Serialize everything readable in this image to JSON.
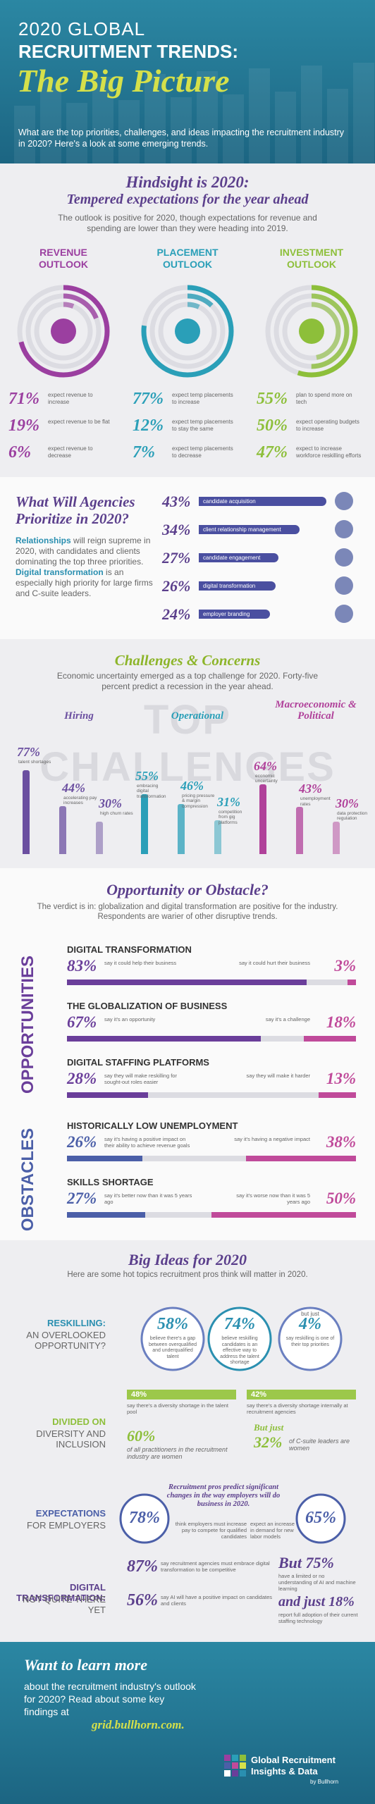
{
  "header": {
    "line1": "2020 GLOBAL",
    "line2": "RECRUITMENT TRENDS:",
    "line3": "The Big Picture",
    "intro": "What are the top priorities, challenges, and ideas impacting the recruitment industry in 2020? Here's a look at some emerging trends."
  },
  "hindsight": {
    "title": "Hindsight is 2020:",
    "subtitle": "Tempered expectations for the year ahead",
    "text": "The outlook is positive for 2020, though expectations for revenue and spending are lower than they were heading into 2019.",
    "columns": [
      {
        "heading": [
          "REVENUE",
          "OUTLOOK"
        ],
        "color": "#9b3fa0",
        "items": [
          {
            "value": "71%",
            "label": "expect revenue to increase"
          },
          {
            "value": "19%",
            "label": "expect revenue to be flat"
          },
          {
            "value": "6%",
            "label": "expect revenue to decrease"
          }
        ]
      },
      {
        "heading": [
          "PLACEMENT",
          "OUTLOOK"
        ],
        "color": "#2a9fb8",
        "items": [
          {
            "value": "77%",
            "label": "expect temp placements to increase"
          },
          {
            "value": "12%",
            "label": "expect temp placements to stay the same"
          },
          {
            "value": "7%",
            "label": "expect temp placements to decrease"
          }
        ]
      },
      {
        "heading": [
          "INVESTMENT",
          "OUTLOOK"
        ],
        "color": "#8dbf3a",
        "items": [
          {
            "value": "55%",
            "label": "plan to spend more on tech"
          },
          {
            "value": "50%",
            "label": "expect operating budgets to increase"
          },
          {
            "value": "47%",
            "label": "expect to increase workforce reskilling efforts"
          }
        ]
      }
    ]
  },
  "priorities": {
    "title": "What Will Agencies Prioritize in 2020?",
    "text": [
      {
        "bold": "Relationships"
      },
      {
        "plain": " will reign supreme in 2020, with candidates and clients dominating the top three priorities. "
      },
      {
        "bold": "Digital transformation"
      },
      {
        "plain": " is an especially high priority for large firms and C-suite leaders."
      }
    ],
    "items": [
      {
        "value": "43%",
        "label": "candidate acquisition"
      },
      {
        "value": "34%",
        "label": "client relationship management"
      },
      {
        "value": "27%",
        "label": "candidate engagement"
      },
      {
        "value": "26%",
        "label": "digital transformation"
      },
      {
        "value": "24%",
        "label": "employer branding"
      }
    ]
  },
  "challenges": {
    "title": "Challenges & Concerns",
    "text": "Economic uncertainty emerged as a top challenge for 2020. Forty-five percent predict a recession in the year ahead.",
    "banner": "TOP CHALLENGES",
    "groups": [
      {
        "title": "Hiring",
        "color": "#6b4fa0",
        "items": [
          {
            "value": "77%",
            "label": "talent shortages"
          },
          {
            "value": "44%",
            "label": "accelerating pay increases"
          },
          {
            "value": "30%",
            "label": "high churn rates"
          }
        ]
      },
      {
        "title": "Operational",
        "color": "#2a9fb8",
        "items": [
          {
            "value": "55%",
            "label": "embracing digital transformation"
          },
          {
            "value": "46%",
            "label": "pricing pressure & margin compression"
          },
          {
            "value": "31%",
            "label": "competition from gig platforms"
          }
        ]
      },
      {
        "title": "Macroeconomic & Political",
        "color": "#b0419a",
        "items": [
          {
            "value": "64%",
            "label": "economic uncertainty"
          },
          {
            "value": "43%",
            "label": "unemployment rates"
          },
          {
            "value": "30%",
            "label": "data protection regulation"
          }
        ]
      }
    ]
  },
  "opportunity": {
    "title": "Opportunity or Obstacle?",
    "text": "The verdict is in: globalization and digital transformation are positive for the industry. Respondents are warier of other disruptive trends.",
    "side1": "OPPORTUNITIES",
    "side2": "OBSTACLES",
    "items": [
      {
        "heading": "DIGITAL TRANSFORMATION",
        "left": "83%",
        "left_label": "say it could help their business",
        "right": "3%",
        "right_label": "say it could hurt their business"
      },
      {
        "heading": "THE GLOBALIZATION OF BUSINESS",
        "left": "67%",
        "left_label": "say it's an opportunity",
        "right": "18%",
        "right_label": "say it's a challenge"
      },
      {
        "heading": "DIGITAL STAFFING PLATFORMS",
        "left": "28%",
        "left_label": "say they will make reskilling for sought-out roles easier",
        "right": "13%",
        "right_label": "say they will make it harder"
      },
      {
        "heading": "HISTORICALLY LOW UNEMPLOYMENT",
        "left": "26%",
        "left_label": "say it's having a positive impact on their ability to achieve revenue goals",
        "right": "38%",
        "right_label": "say it's having a negative impact"
      },
      {
        "heading": "SKILLS SHORTAGE",
        "left": "27%",
        "left_label": "say it's better now than it was 5 years ago",
        "right": "50%",
        "right_label": "say it's worse now than it was 5 years ago"
      }
    ]
  },
  "ideas": {
    "title": "Big Ideas for 2020",
    "text": "Here are some hot topics recruitment pros think will matter in 2020.",
    "reskilling": {
      "label1": "RESKILLING:",
      "label2": "AN OVERLOOKED OPPORTUNITY?",
      "c1": "58%",
      "c1_label": "believe there's a gap between overqualified and underqualified talent",
      "c2": "74%",
      "c2_label": "believe reskilling candidates is an effective way to address the talent shortage",
      "c3_pre": "but just",
      "c3": "4%",
      "c3_label": "say reskilling is one of their top priorities"
    },
    "diversity": {
      "label1": "DIVIDED ON",
      "label2": "DIVERSITY AND INCLUSION",
      "b1": "48%",
      "b1_label": "say there's a diversity shortage in the talent pool",
      "b2": "42%",
      "b2_label": "say there's a diversity shortage internally at recruitment agencies",
      "w1": "60%",
      "w1_label": "of all practitioners in the recruitment industry are women",
      "w2_pre": "But just",
      "w2": "32%",
      "w2_label": "of C-suite leaders are women"
    },
    "employers": {
      "label1": "EXPECTATIONS",
      "label2": "FOR EMPLOYERS",
      "note": "Recruitment pros predict significant changes in the way employers will do business in 2020.",
      "c1": "78%",
      "c1_label": "think employers must increase pay to compete for qualified candidates",
      "c2": "65%",
      "c2_label": "expect an increase in demand for new labor models"
    },
    "digital": {
      "label1": "DIGITAL TRANSFORMATION:",
      "label2": "NOT QUITE THERE YET",
      "s1": "87%",
      "s1_label": "say recruitment agencies must embrace digital transformation to be competitive",
      "s2": "56%",
      "s2_label": "say AI will have a positive impact on candidates and clients",
      "s3": "But 75%",
      "s3_label": "have a limited or no understanding of AI and machine learning",
      "s4": "and just 18%",
      "s4_label": "report full adoption of their current staffing technology"
    }
  },
  "footer": {
    "title": "Want to learn more",
    "text": "about the recruitment industry's outlook for 2020? Read about some key findings at",
    "link": "grid.bullhorn.com.",
    "logo1": "Global Recruitment",
    "logo2": "Insights & Data",
    "logo3": "by Bullhorn"
  }
}
